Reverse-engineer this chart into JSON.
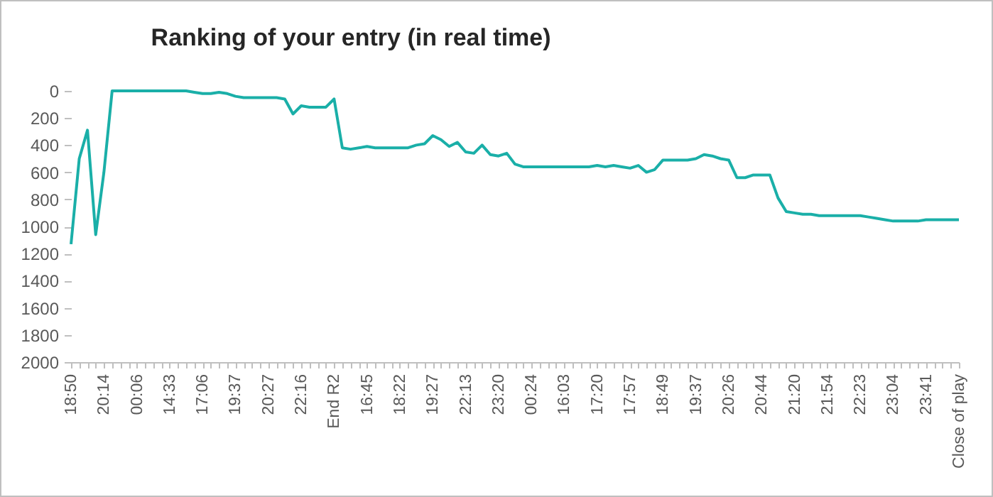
{
  "chart_data": {
    "type": "line",
    "title": "Ranking of your entry (in real time)",
    "categories": [
      "18:50",
      null,
      null,
      null,
      "20:14",
      null,
      null,
      null,
      "00:06",
      null,
      null,
      null,
      "14:33",
      null,
      null,
      null,
      "17:06",
      null,
      null,
      null,
      "19:37",
      null,
      null,
      null,
      "20:27",
      null,
      null,
      null,
      "22:16",
      null,
      null,
      null,
      "End R2",
      null,
      null,
      null,
      "16:45",
      null,
      null,
      null,
      "18:22",
      null,
      null,
      null,
      "19:27",
      null,
      null,
      null,
      "22:13",
      null,
      null,
      null,
      "23:20",
      null,
      null,
      null,
      "00:24",
      null,
      null,
      null,
      "16:03",
      null,
      null,
      null,
      "17:20",
      null,
      null,
      null,
      "17:57",
      null,
      null,
      null,
      "18:49",
      null,
      null,
      null,
      "19:37",
      null,
      null,
      null,
      "20:26",
      null,
      null,
      null,
      "20:44",
      null,
      null,
      null,
      "21:20",
      null,
      null,
      null,
      "21:54",
      null,
      null,
      null,
      "22:23",
      null,
      null,
      null,
      "23:04",
      null,
      null,
      null,
      "23:41",
      null,
      null,
      null,
      "Close of play"
    ],
    "series": [
      {
        "color": "#1aafa8",
        "values": [
          1130,
          500,
          290,
          1060,
          600,
          0,
          0,
          0,
          0,
          0,
          0,
          0,
          0,
          0,
          0,
          10,
          20,
          20,
          10,
          20,
          40,
          50,
          50,
          50,
          50,
          50,
          60,
          170,
          110,
          120,
          120,
          120,
          60,
          420,
          430,
          420,
          410,
          420,
          420,
          420,
          420,
          420,
          400,
          390,
          330,
          360,
          410,
          380,
          450,
          460,
          400,
          470,
          480,
          460,
          540,
          560,
          560,
          560,
          560,
          560,
          560,
          560,
          560,
          560,
          550,
          560,
          550,
          560,
          570,
          550,
          600,
          580,
          510,
          510,
          510,
          510,
          500,
          470,
          480,
          500,
          510,
          640,
          640,
          620,
          620,
          620,
          790,
          890,
          900,
          910,
          910,
          920,
          920,
          920,
          920,
          920,
          920,
          930,
          940,
          950,
          960,
          960,
          960,
          960,
          950,
          950,
          950,
          950,
          950
        ]
      }
    ],
    "ylim": [
      2000,
      0
    ],
    "yticks": [
      0,
      200,
      400,
      600,
      800,
      1000,
      1200,
      1400,
      1600,
      1800,
      2000
    ],
    "grid": false
  }
}
